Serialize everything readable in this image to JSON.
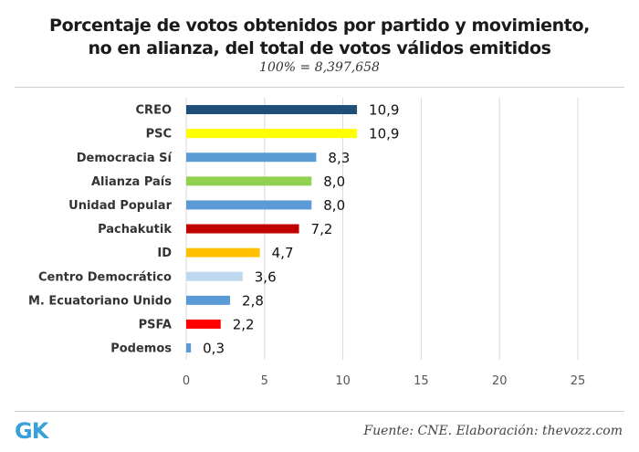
{
  "header": {
    "title_line1": "Porcentaje de votos obtenidos por partido y movimiento,",
    "title_line2": "no en alianza, del total de votos válidos emitidos",
    "subtitle": "100% = 8,397,658"
  },
  "footer": {
    "logo": "GK",
    "source": "Fuente: CNE. Elaboración: thevozz.com"
  },
  "chart_data": {
    "type": "bar",
    "orientation": "horizontal",
    "title": "Porcentaje de votos obtenidos por partido y movimiento, no en alianza, del total de votos válidos emitidos",
    "subtitle": "100% = 8,397,658",
    "xlim": [
      0,
      25
    ],
    "xticks": [
      0,
      5,
      10,
      15,
      20,
      25
    ],
    "grid": true,
    "categories": [
      "CREO",
      "PSC",
      "Democracia Sí",
      "Alianza País",
      "Unidad Popular",
      "Pachakutik",
      "ID",
      "Centro Democrático",
      "M. Ecuatoriano Unido",
      "PSFA",
      "Podemos"
    ],
    "values": [
      10.9,
      10.9,
      8.3,
      8.0,
      8.0,
      7.2,
      4.7,
      3.6,
      2.8,
      2.2,
      0.3
    ],
    "value_labels": [
      "10,9",
      "10,9",
      "8,3",
      "8,0",
      "8,0",
      "7,2",
      "4,7",
      "3,6",
      "2,8",
      "2,2",
      "0,3"
    ],
    "colors": [
      "#1f4e79",
      "#ffff00",
      "#5b9bd5",
      "#92d050",
      "#5b9bd5",
      "#c00000",
      "#ffc000",
      "#bdd7ee",
      "#5b9bd5",
      "#ff0000",
      "#5b9bd5"
    ]
  }
}
